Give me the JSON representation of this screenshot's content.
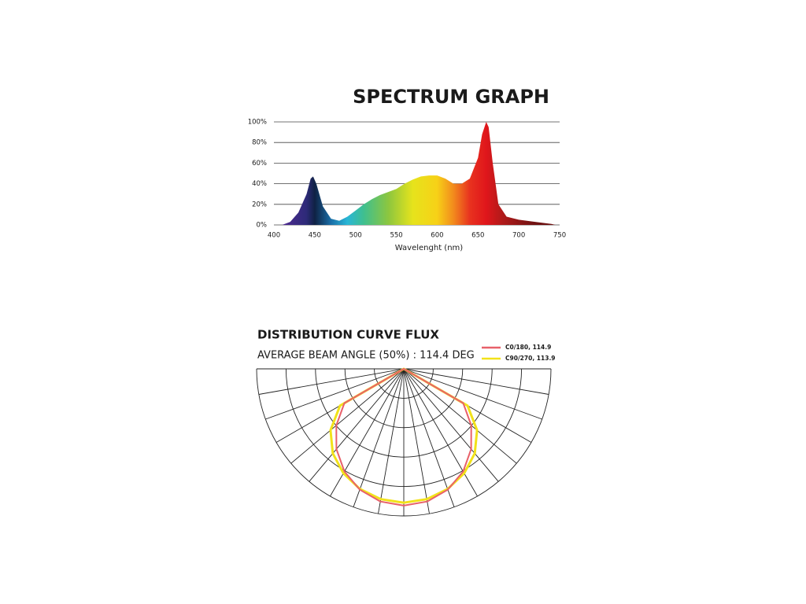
{
  "chart_data": [
    {
      "type": "area",
      "title": "SPECTRUM GRAPH",
      "xlabel": "Wavelenght (nm)",
      "x": [
        410,
        420,
        430,
        440,
        445,
        448,
        452,
        460,
        470,
        480,
        490,
        500,
        510,
        520,
        530,
        540,
        550,
        560,
        570,
        580,
        590,
        600,
        610,
        620,
        630,
        640,
        650,
        655,
        660,
        663,
        668,
        675,
        685,
        700,
        720,
        740,
        745
      ],
      "values": [
        0,
        3,
        12,
        30,
        45,
        47,
        40,
        18,
        6,
        4,
        8,
        14,
        20,
        25,
        29,
        32,
        35,
        40,
        44,
        47,
        48,
        48,
        45,
        40,
        40,
        45,
        65,
        88,
        100,
        95,
        60,
        20,
        8,
        5,
        3,
        1,
        0
      ],
      "xlim": [
        400,
        750
      ],
      "xticks": [
        400,
        450,
        500,
        550,
        600,
        650,
        700,
        750
      ],
      "ylim": [
        0,
        100
      ],
      "yticks": [
        {
          "value": 0,
          "label": "0%"
        },
        {
          "value": 20,
          "label": "20%"
        },
        {
          "value": 40,
          "label": "40%"
        },
        {
          "value": 60,
          "label": "60%"
        },
        {
          "value": 80,
          "label": "80%"
        },
        {
          "value": 100,
          "label": "100%"
        }
      ],
      "grid": true
    },
    {
      "type": "polar",
      "title": "DISTRIBUTION CURVE FLUX",
      "subtitle": "AVERAGE BEAM ANGLE  (50%) : 114.4 DEG",
      "angles": [
        -90,
        -80,
        -70,
        -60,
        -50,
        -40,
        -30,
        -20,
        -10,
        0,
        10,
        20,
        30,
        40,
        50,
        60,
        70,
        80,
        90
      ],
      "rlim": [
        0,
        5
      ],
      "rticks": [
        1,
        2,
        3,
        4,
        5
      ],
      "series": [
        {
          "name": "C0/180, 114.9",
          "color": "#e8616a",
          "values": [
            0,
            0,
            0,
            2.33,
            2.99,
            3.56,
            4.03,
            4.37,
            4.58,
            4.65,
            4.58,
            4.37,
            4.03,
            3.56,
            2.99,
            2.33,
            0,
            0,
            0
          ]
        },
        {
          "name": "C90/270, 113.9",
          "color": "#f2e21a",
          "values": [
            0,
            0,
            0,
            2.5,
            3.25,
            3.75,
            4.1,
            4.35,
            4.5,
            4.55,
            4.5,
            4.35,
            4.1,
            3.75,
            3.25,
            2.5,
            0,
            0,
            0
          ]
        }
      ]
    }
  ]
}
